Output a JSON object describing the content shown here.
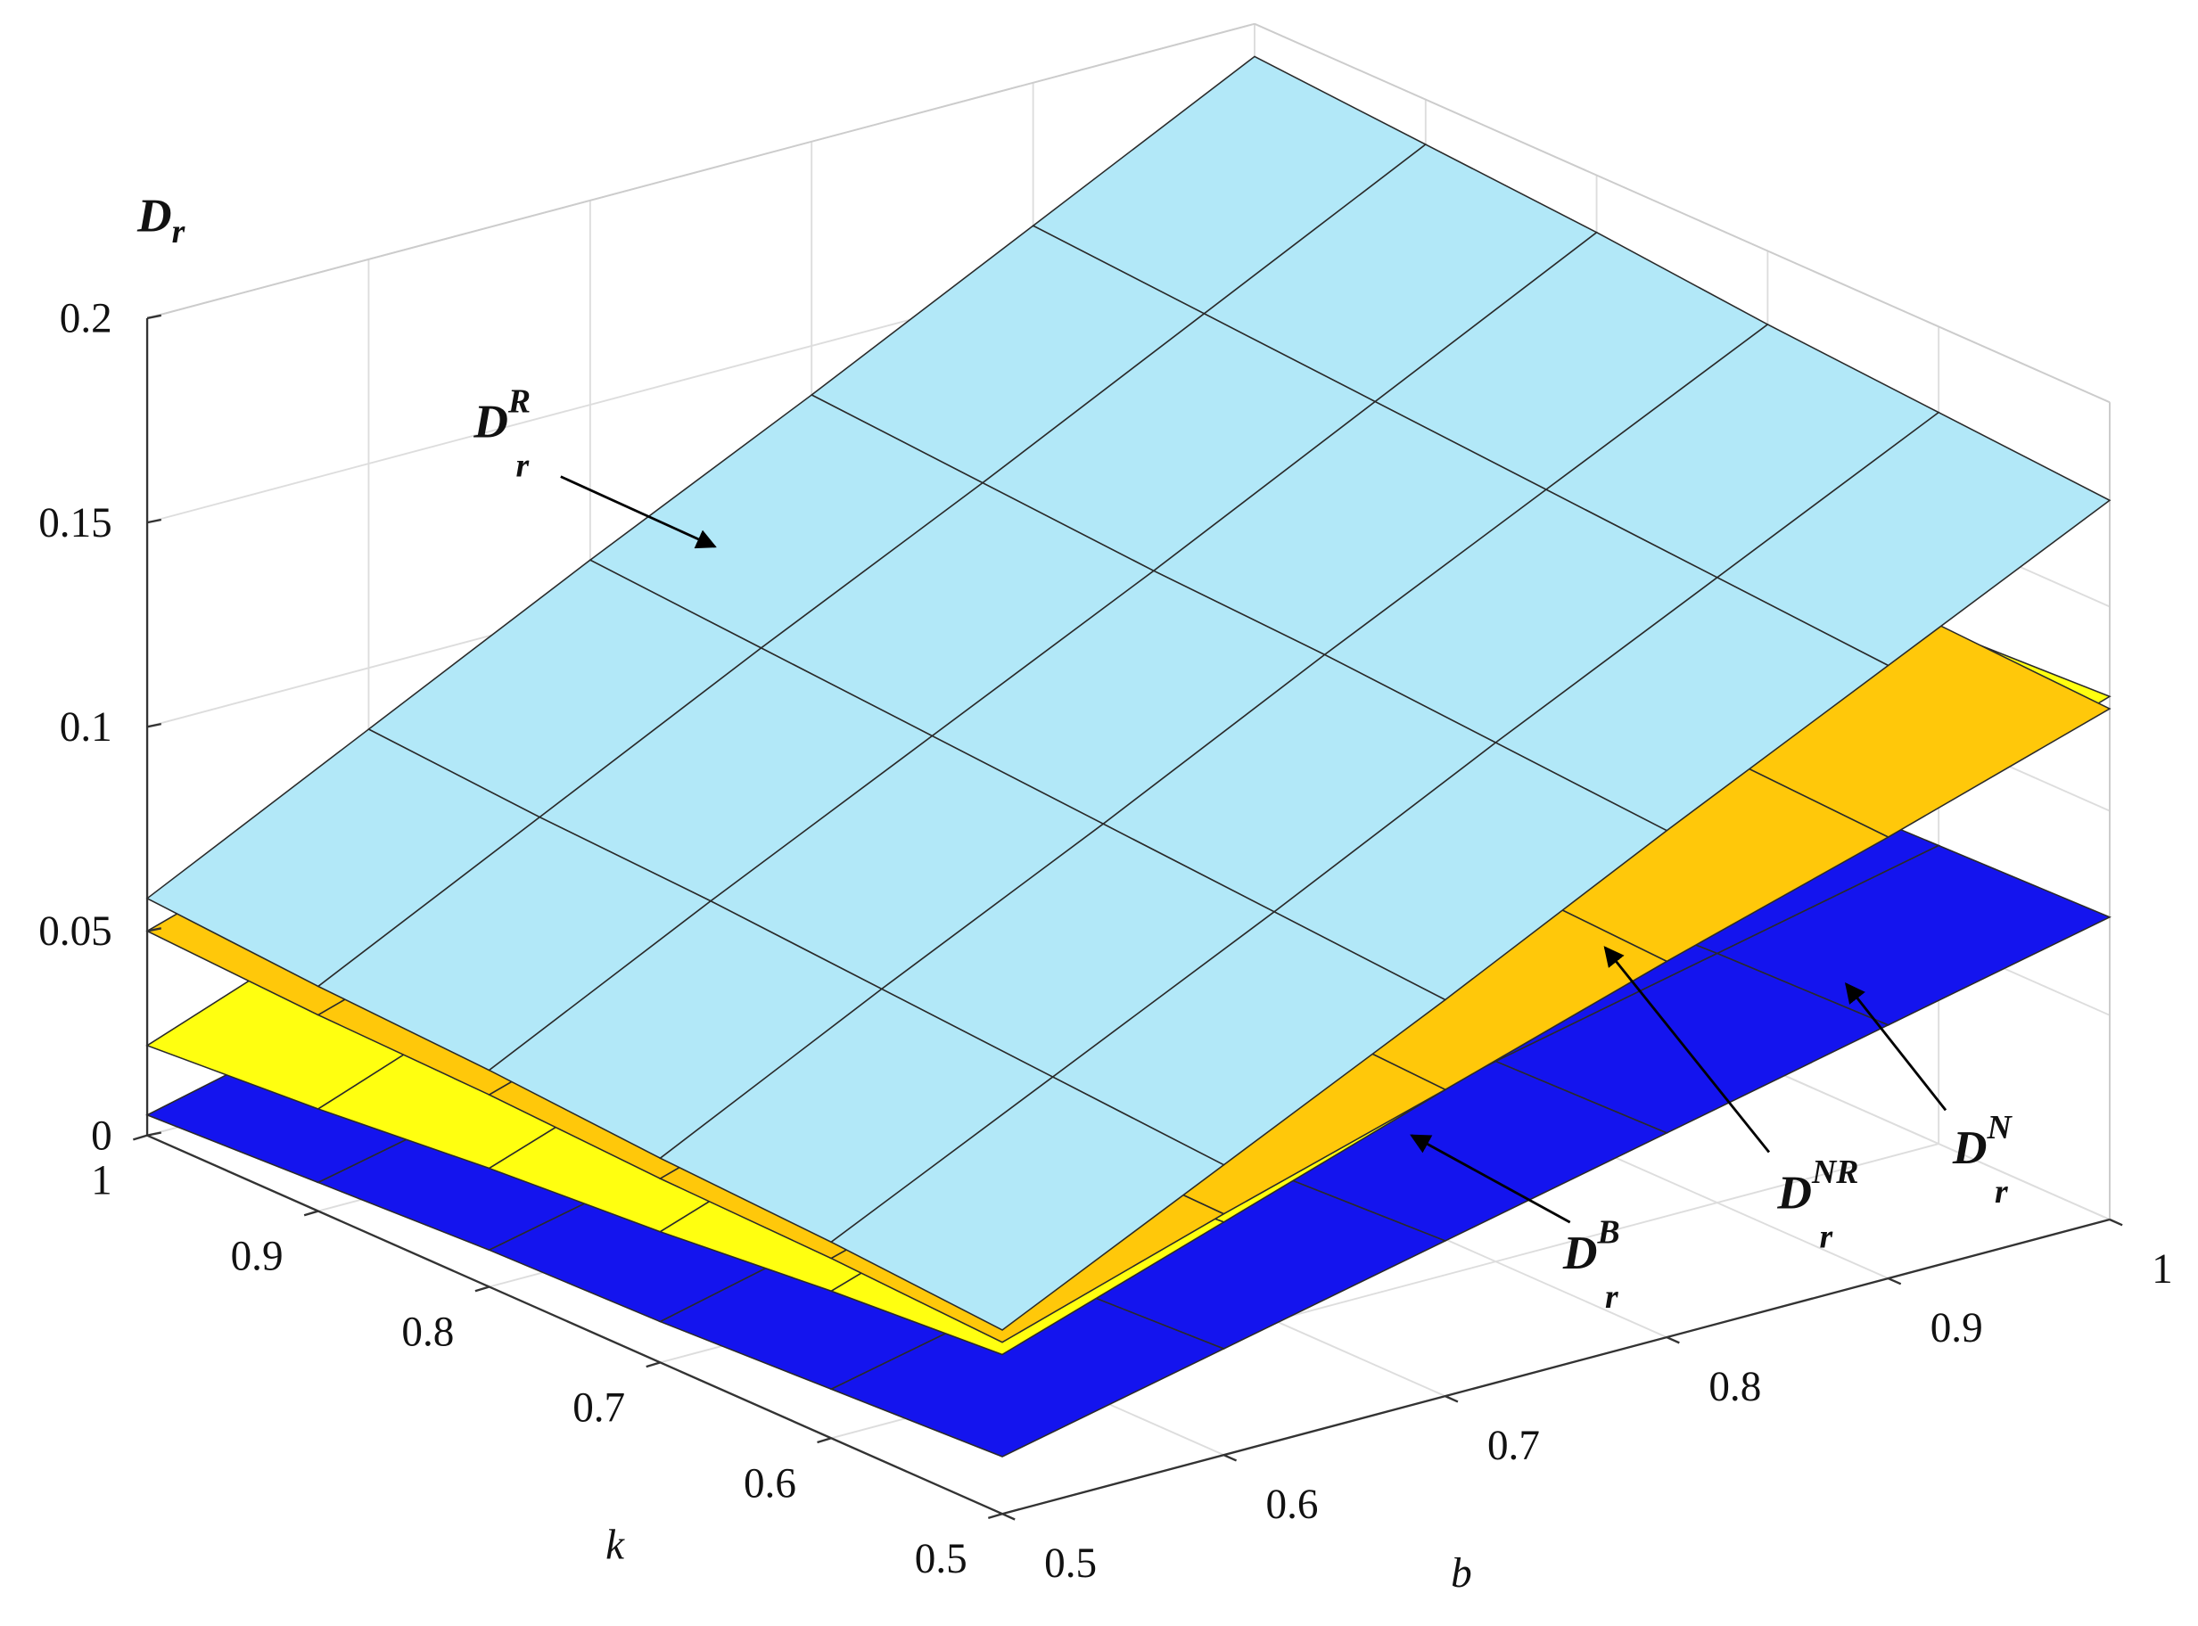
{
  "chart_data": {
    "type": "surface3d",
    "zlabel": {
      "main": "D",
      "sub": "r"
    },
    "xlabel": "b",
    "ylabel": "k",
    "x": [
      0.5,
      0.6,
      0.7,
      0.8,
      0.9,
      1
    ],
    "y": [
      0.5,
      0.6,
      0.7,
      0.8,
      0.9,
      1
    ],
    "xlim": [
      0.5,
      1
    ],
    "xticks": [
      0.5,
      0.6,
      0.7,
      0.8,
      0.9,
      1
    ],
    "ylim": [
      0.5,
      1
    ],
    "yticks": [
      0.5,
      0.6,
      0.7,
      0.8,
      0.9,
      1
    ],
    "zlim": [
      0,
      0.2
    ],
    "zticks": [
      0,
      0.05,
      0.1,
      0.15,
      0.2
    ],
    "grid": true,
    "series": [
      {
        "name": {
          "main": "D",
          "sub": "r",
          "sup": "B"
        },
        "color": "#1414ee",
        "values": [
          [
            0.014,
            0.026,
            0.038,
            0.05,
            0.062,
            0.074
          ],
          [
            0.012,
            0.024,
            0.036,
            0.049,
            0.061,
            0.073
          ],
          [
            0.01,
            0.023,
            0.035,
            0.047,
            0.059,
            0.072
          ],
          [
            0.009,
            0.021,
            0.033,
            0.046,
            0.058,
            0.07
          ],
          [
            0.007,
            0.019,
            0.032,
            0.044,
            0.057,
            0.069
          ],
          [
            0.005,
            0.018,
            0.03,
            0.043,
            0.055,
            0.068
          ]
        ]
      },
      {
        "name": {
          "main": "D",
          "sub": "r",
          "sup": "N"
        },
        "color": "#ffff10",
        "values": [
          [
            0.039,
            0.057,
            0.075,
            0.092,
            0.11,
            0.128
          ],
          [
            0.036,
            0.054,
            0.072,
            0.09,
            0.108,
            0.126
          ],
          [
            0.032,
            0.051,
            0.069,
            0.088,
            0.106,
            0.125
          ],
          [
            0.029,
            0.048,
            0.067,
            0.086,
            0.104,
            0.123
          ],
          [
            0.025,
            0.045,
            0.064,
            0.083,
            0.102,
            0.122
          ],
          [
            0.022,
            0.042,
            0.061,
            0.081,
            0.1,
            0.12
          ]
        ]
      },
      {
        "name": {
          "main": "D",
          "sub": "r",
          "sup": "NR"
        },
        "color": "#ffc80a",
        "values": [
          [
            0.042,
            0.059,
            0.075,
            0.092,
            0.108,
            0.125
          ],
          [
            0.044,
            0.06,
            0.077,
            0.094,
            0.11,
            0.127
          ],
          [
            0.045,
            0.062,
            0.079,
            0.096,
            0.112,
            0.129
          ],
          [
            0.047,
            0.064,
            0.081,
            0.097,
            0.114,
            0.131
          ],
          [
            0.048,
            0.065,
            0.082,
            0.099,
            0.116,
            0.133
          ],
          [
            0.05,
            0.067,
            0.084,
            0.101,
            0.118,
            0.135
          ]
        ]
      },
      {
        "name": {
          "main": "D",
          "sub": "r",
          "sup": "R"
        },
        "color": "#b2e8f8",
        "values": [
          [
            0.045,
            0.071,
            0.097,
            0.124,
            0.15,
            0.176
          ],
          [
            0.048,
            0.074,
            0.1,
            0.127,
            0.153,
            0.179
          ],
          [
            0.05,
            0.077,
            0.103,
            0.13,
            0.156,
            0.182
          ],
          [
            0.053,
            0.08,
            0.106,
            0.132,
            0.159,
            0.186
          ],
          [
            0.055,
            0.082,
            0.109,
            0.135,
            0.162,
            0.189
          ],
          [
            0.058,
            0.085,
            0.112,
            0.138,
            0.165,
            0.192
          ]
        ]
      }
    ]
  }
}
